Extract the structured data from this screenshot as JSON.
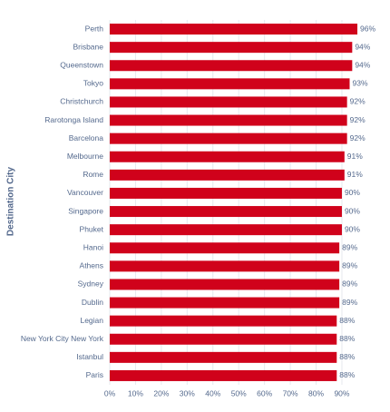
{
  "chart_data": {
    "type": "bar",
    "horizontal": true,
    "y_label": "Destination City",
    "categories": [
      "Perth",
      "Brisbane",
      "Queenstown",
      "Tokyo",
      "Christchurch",
      "Rarotonga Island",
      "Barcelona",
      "Melbourne",
      "Rome",
      "Vancouver",
      "Singapore",
      "Phuket",
      "Hanoi",
      "Athens",
      "Sydney",
      "Dublin",
      "Legian",
      "New York City New York",
      "Istanbul",
      "Paris"
    ],
    "values": [
      96,
      94,
      94,
      93,
      92,
      92,
      92,
      91,
      91,
      90,
      90,
      90,
      89,
      89,
      89,
      89,
      88,
      88,
      88,
      88
    ],
    "value_labels": [
      "96%",
      "94%",
      "94%",
      "93%",
      "92%",
      "92%",
      "92%",
      "91%",
      "91%",
      "90%",
      "90%",
      "90%",
      "89%",
      "89%",
      "89%",
      "89%",
      "88%",
      "88%",
      "88%",
      "88%"
    ],
    "color": "#d0021b",
    "xlim": [
      0,
      100
    ],
    "xticks": [
      {
        "value": 0,
        "label": "0%"
      },
      {
        "value": 10,
        "label": "10%"
      },
      {
        "value": 20,
        "label": "20%"
      },
      {
        "value": 30,
        "label": "30%"
      },
      {
        "value": 40,
        "label": "40%"
      },
      {
        "value": 50,
        "label": "50%"
      },
      {
        "value": 60,
        "label": "60%"
      },
      {
        "value": 70,
        "label": "70%"
      },
      {
        "value": 80,
        "label": "80%"
      },
      {
        "value": 90,
        "label": "90%"
      }
    ],
    "grid": true
  }
}
